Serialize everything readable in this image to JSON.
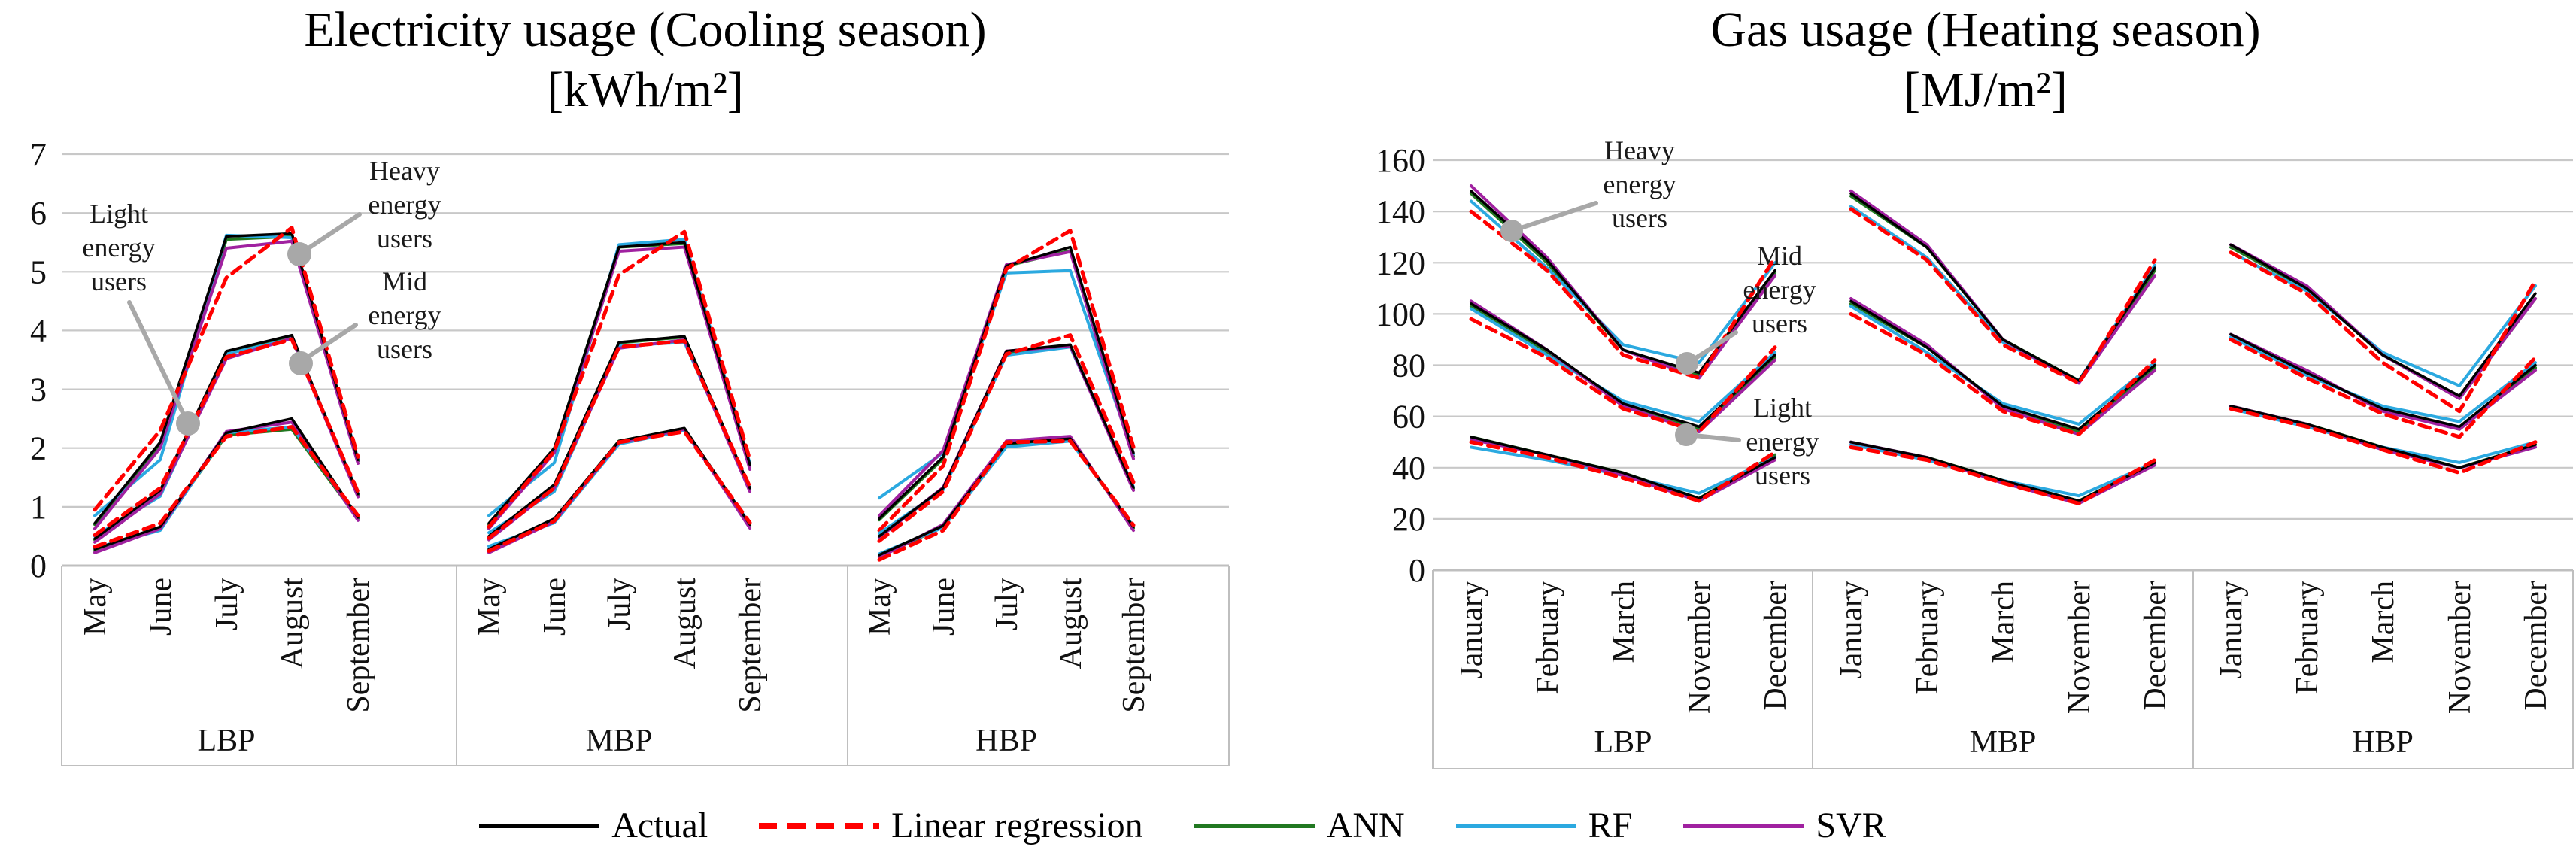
{
  "chart_data": [
    {
      "type": "line",
      "title": "Electricity usage (Cooling season)",
      "unit": "[kWh/m²]",
      "ylim": [
        0,
        7
      ],
      "y_ticks": [
        7,
        6,
        5,
        4,
        3,
        2,
        1,
        0
      ],
      "grid": true,
      "legend_position": "bottom",
      "categories": [
        "May",
        "June",
        "July",
        "August",
        "September"
      ],
      "groups": [
        "LBP",
        "MBP",
        "HBP"
      ],
      "annotations": [
        {
          "label": "Light energy users"
        },
        {
          "label": "Heavy energy users"
        },
        {
          "label": "Mid energy users"
        }
      ],
      "series": {
        "LBP": {
          "heavy": {
            "Actual": [
              0.72,
              2.1,
              5.6,
              5.65,
              1.8
            ],
            "Linear regression": [
              0.95,
              2.3,
              4.9,
              5.75,
              1.85
            ],
            "ANN": [
              0.7,
              2.05,
              5.55,
              5.6,
              1.78
            ],
            "RF": [
              0.85,
              1.8,
              5.62,
              5.58,
              1.82
            ],
            "SVR": [
              0.63,
              2.0,
              5.4,
              5.52,
              1.74
            ]
          },
          "mid": {
            "Actual": [
              0.46,
              1.28,
              3.65,
              3.92,
              1.22
            ],
            "Linear regression": [
              0.52,
              1.32,
              3.55,
              3.85,
              1.25
            ],
            "ANN": [
              0.44,
              1.25,
              3.63,
              3.9,
              1.2
            ],
            "RF": [
              0.5,
              1.18,
              3.6,
              3.86,
              1.23
            ],
            "SVR": [
              0.4,
              1.22,
              3.52,
              3.87,
              1.17
            ]
          },
          "light": {
            "Actual": [
              0.28,
              0.66,
              2.26,
              2.5,
              0.82
            ],
            "Linear regression": [
              0.32,
              0.72,
              2.2,
              2.36,
              0.85
            ],
            "ANN": [
              0.25,
              0.64,
              2.22,
              2.32,
              0.8
            ],
            "RF": [
              0.3,
              0.6,
              2.26,
              2.36,
              0.83
            ],
            "SVR": [
              0.22,
              0.63,
              2.28,
              2.44,
              0.77
            ]
          }
        },
        "MBP": {
          "heavy": {
            "Actual": [
              0.72,
              2.0,
              5.42,
              5.5,
              1.72
            ],
            "Linear regression": [
              0.66,
              1.95,
              4.95,
              5.68,
              1.8
            ],
            "ANN": [
              0.7,
              1.98,
              5.42,
              5.48,
              1.7
            ],
            "RF": [
              0.85,
              1.75,
              5.46,
              5.55,
              1.74
            ],
            "SVR": [
              0.63,
              1.92,
              5.35,
              5.42,
              1.64
            ]
          },
          "mid": {
            "Actual": [
              0.5,
              1.38,
              3.8,
              3.9,
              1.32
            ],
            "Linear regression": [
              0.47,
              1.32,
              3.72,
              3.82,
              1.34
            ],
            "ANN": [
              0.48,
              1.36,
              3.79,
              3.89,
              1.3
            ],
            "RF": [
              0.56,
              1.26,
              3.74,
              3.8,
              1.32
            ],
            "SVR": [
              0.44,
              1.32,
              3.7,
              3.84,
              1.26
            ]
          },
          "light": {
            "Actual": [
              0.28,
              0.8,
              2.12,
              2.34,
              0.7
            ],
            "Linear regression": [
              0.25,
              0.76,
              2.1,
              2.28,
              0.73
            ],
            "ANN": [
              0.26,
              0.78,
              2.12,
              2.32,
              0.68
            ],
            "RF": [
              0.33,
              0.73,
              2.07,
              2.3,
              0.71
            ],
            "SVR": [
              0.22,
              0.75,
              2.1,
              2.32,
              0.64
            ]
          }
        },
        "HBP": {
          "heavy": {
            "Actual": [
              0.8,
              1.85,
              5.1,
              5.42,
              1.92
            ],
            "Linear regression": [
              0.6,
              1.7,
              5.05,
              5.7,
              2.02
            ],
            "ANN": [
              0.78,
              1.82,
              5.1,
              5.36,
              1.86
            ],
            "RF": [
              1.15,
              1.92,
              4.98,
              5.02,
              1.9
            ],
            "SVR": [
              0.85,
              1.96,
              5.12,
              5.34,
              1.82
            ]
          },
          "mid": {
            "Actual": [
              0.5,
              1.32,
              3.65,
              3.76,
              1.33
            ],
            "Linear regression": [
              0.42,
              1.26,
              3.6,
              3.92,
              1.42
            ],
            "ANN": [
              0.5,
              1.31,
              3.63,
              3.74,
              1.31
            ],
            "RF": [
              0.55,
              1.29,
              3.58,
              3.72,
              1.34
            ],
            "SVR": [
              0.48,
              1.33,
              3.65,
              3.74,
              1.28
            ]
          },
          "light": {
            "Actual": [
              0.18,
              0.68,
              2.08,
              2.16,
              0.66
            ],
            "Linear regression": [
              0.1,
              0.6,
              2.1,
              2.12,
              0.69
            ],
            "ANN": [
              0.16,
              0.66,
              2.04,
              2.14,
              0.64
            ],
            "RF": [
              0.2,
              0.65,
              2.02,
              2.12,
              0.67
            ],
            "SVR": [
              0.14,
              0.7,
              2.12,
              2.2,
              0.6
            ]
          }
        }
      }
    },
    {
      "type": "line",
      "title": "Gas usage (Heating season)",
      "unit": "[MJ/m²]",
      "ylim": [
        0,
        160
      ],
      "y_ticks": [
        160,
        140,
        120,
        100,
        80,
        60,
        40,
        20,
        0
      ],
      "grid": true,
      "legend_position": "bottom",
      "categories": [
        "January",
        "February",
        "March",
        "November",
        "December"
      ],
      "groups": [
        "LBP",
        "MBP",
        "HBP"
      ],
      "annotations": [
        {
          "label": "Heavy energy users"
        },
        {
          "label": "Mid energy users"
        },
        {
          "label": "Light energy users"
        }
      ],
      "series": {
        "LBP": {
          "heavy": {
            "Actual": [
              148,
              121,
              86,
              77,
              117
            ],
            "Linear regression": [
              140,
              117,
              84,
              75,
              122
            ],
            "ANN": [
              147,
              120,
              86,
              76,
              116
            ],
            "RF": [
              144,
              118,
              88,
              81,
              120
            ],
            "SVR": [
              150,
              122,
              86,
              75,
              115
            ]
          },
          "mid": {
            "Actual": [
              104,
              86,
              65,
              56,
              84
            ],
            "Linear regression": [
              98,
              83,
              63,
              54,
              87
            ],
            "ANN": [
              103,
              85,
              65,
              55,
              83
            ],
            "RF": [
              102,
              84,
              66,
              58,
              85
            ],
            "SVR": [
              105,
              86,
              64,
              54,
              82
            ]
          },
          "light": {
            "Actual": [
              52,
              45,
              38,
              28,
              44
            ],
            "Linear regression": [
              50,
              44,
              36,
              27,
              46
            ],
            "ANN": [
              52,
              45,
              38,
              28,
              45
            ],
            "RF": [
              48,
              43,
              37,
              30,
              44
            ],
            "SVR": [
              51,
              45,
              37,
              27,
              43
            ]
          }
        },
        "MBP": {
          "heavy": {
            "Actual": [
              147,
              126,
              90,
              74,
              118
            ],
            "Linear regression": [
              141,
              121,
              88,
              73,
              121
            ],
            "ANN": [
              146,
              126,
              90,
              74,
              117
            ],
            "RF": [
              142,
              122,
              89,
              74,
              119
            ],
            "SVR": [
              148,
              127,
              90,
              73,
              115
            ]
          },
          "mid": {
            "Actual": [
              105,
              87,
              64,
              55,
              80
            ],
            "Linear regression": [
              100,
              84,
              62,
              53,
              82
            ],
            "ANN": [
              104,
              87,
              64,
              54,
              79
            ],
            "RF": [
              103,
              85,
              65,
              57,
              81
            ],
            "SVR": [
              106,
              88,
              63,
              53,
              78
            ]
          },
          "light": {
            "Actual": [
              50,
              44,
              35,
              27,
              42
            ],
            "Linear regression": [
              48,
              43,
              34,
              26,
              43
            ],
            "ANN": [
              50,
              44,
              35,
              27,
              42
            ],
            "RF": [
              49,
              43,
              35,
              29,
              42
            ],
            "SVR": [
              50,
              44,
              34,
              26,
              41
            ]
          }
        },
        "HBP": {
          "heavy": {
            "Actual": [
              127,
              110,
              84,
              68,
              108
            ],
            "Linear regression": [
              124,
              108,
              81,
              62,
              113
            ],
            "ANN": [
              126,
              110,
              84,
              67,
              106
            ],
            "RF": [
              124,
              109,
              85,
              72,
              111
            ],
            "SVR": [
              127,
              111,
              84,
              67,
              106
            ]
          },
          "mid": {
            "Actual": [
              92,
              77,
              63,
              56,
              80
            ],
            "Linear regression": [
              90,
              75,
              61,
              52,
              83
            ],
            "ANN": [
              92,
              77,
              63,
              55,
              79
            ],
            "RF": [
              91,
              76,
              64,
              58,
              81
            ],
            "SVR": [
              92,
              78,
              62,
              55,
              78
            ]
          },
          "light": {
            "Actual": [
              64,
              57,
              48,
              40,
              49
            ],
            "Linear regression": [
              63,
              56,
              47,
              38,
              50
            ],
            "ANN": [
              64,
              57,
              48,
              40,
              49
            ],
            "RF": [
              63,
              56,
              48,
              42,
              50
            ],
            "SVR": [
              64,
              57,
              47,
              40,
              48
            ]
          }
        }
      }
    }
  ],
  "legend": {
    "items": [
      {
        "label": "Actual",
        "color": "#000000",
        "style": "solid"
      },
      {
        "label": "Linear regression",
        "color": "#FF0000",
        "style": "dashed"
      },
      {
        "label": "ANN",
        "color": "#217821",
        "style": "solid"
      },
      {
        "label": "RF",
        "color": "#2BA9E0",
        "style": "solid"
      },
      {
        "label": "SVR",
        "color": "#A021A0",
        "style": "solid"
      }
    ]
  },
  "colors": {
    "gridline": "#C8C8C8",
    "table_border": "#BFBFBF",
    "callout": "#A8A8A8"
  }
}
